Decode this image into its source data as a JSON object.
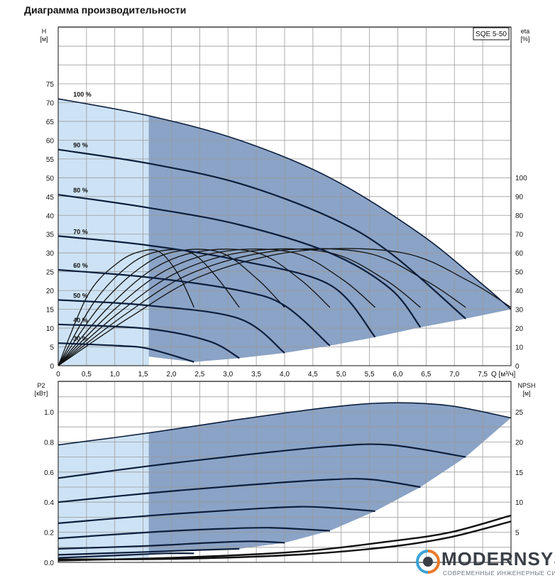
{
  "page_title": "Диаграмма производительности",
  "colors": {
    "region_dark": "#8aa3c6",
    "region_light": "#cde3f5",
    "curve": "#0c1e3c",
    "grid": "#9a9a9a"
  },
  "chart_data": [
    {
      "type": "line",
      "model_badge": "SQE 5-50",
      "y_left_label": [
        "H",
        "[м]"
      ],
      "y_right_label": [
        "eta",
        "[%]"
      ],
      "x_label": "Q [м³/ч]",
      "xlim": [
        0,
        7.5
      ],
      "x_ticks": [
        "0",
        "0,5",
        "1,0",
        "1,5",
        "2,0",
        "2,5",
        "3,0",
        "3,5",
        "4,0",
        "4,5",
        "5,0",
        "5,5",
        "6,0",
        "6,5",
        "7,0",
        "7,5"
      ],
      "ylim": [
        0,
        75
      ],
      "y_ticks": [
        "0",
        "5",
        "10",
        "15",
        "20",
        "25",
        "30",
        "35",
        "40",
        "45",
        "50",
        "55",
        "60",
        "65",
        "70",
        "75"
      ],
      "y2lim": [
        0,
        100
      ],
      "y2_ticks": [
        "0",
        "10",
        "20",
        "30",
        "40",
        "50",
        "60",
        "70",
        "80",
        "90",
        "100"
      ],
      "grid": true,
      "min_flow_light_region": [
        0,
        1.5
      ],
      "operating_region_lower_boundary": [
        [
          1.5,
          2.4
        ],
        [
          2.25,
          1.0
        ],
        [
          3.0,
          2.0
        ],
        [
          3.75,
          3.4
        ],
        [
          4.5,
          5.3
        ],
        [
          5.25,
          7.6
        ],
        [
          6.0,
          10.2
        ],
        [
          6.75,
          12.5
        ],
        [
          7.5,
          15.0
        ]
      ],
      "head_curves": [
        {
          "label": "100 %",
          "points": [
            [
              0,
              71.0
            ],
            [
              1.5,
              66.5
            ],
            [
              3.0,
              60.0
            ],
            [
              4.5,
              50.0
            ],
            [
              6.0,
              35.0
            ],
            [
              7.0,
              22.0
            ],
            [
              7.5,
              15.0
            ]
          ]
        },
        {
          "label": "90 %",
          "points": [
            [
              0,
              57.5
            ],
            [
              1.5,
              53.8
            ],
            [
              3.0,
              48.5
            ],
            [
              4.5,
              39.5
            ],
            [
              5.5,
              30.0
            ],
            [
              6.75,
              12.5
            ]
          ]
        },
        {
          "label": "80 %",
          "points": [
            [
              0,
              45.5
            ],
            [
              1.5,
              42.0
            ],
            [
              3.0,
              37.5
            ],
            [
              4.5,
              30.0
            ],
            [
              5.5,
              20.5
            ],
            [
              6.0,
              10.2
            ]
          ]
        },
        {
          "label": "70 %",
          "points": [
            [
              0,
              34.5
            ],
            [
              1.5,
              32.0
            ],
            [
              3.0,
              28.0
            ],
            [
              4.5,
              21.5
            ],
            [
              5.25,
              7.6
            ]
          ]
        },
        {
          "label": "60 %",
          "points": [
            [
              0,
              25.5
            ],
            [
              1.5,
              23.5
            ],
            [
              3.0,
              20.0
            ],
            [
              3.75,
              16.0
            ],
            [
              4.5,
              5.3
            ]
          ]
        },
        {
          "label": "50 %",
          "points": [
            [
              0,
              17.5
            ],
            [
              1.5,
              16.0
            ],
            [
              3.0,
              12.5
            ],
            [
              3.75,
              3.4
            ]
          ]
        },
        {
          "label": "40 %",
          "points": [
            [
              0,
              11.0
            ],
            [
              1.5,
              9.8
            ],
            [
              2.5,
              6.5
            ],
            [
              3.0,
              2.0
            ]
          ]
        },
        {
          "label": "30 %",
          "points": [
            [
              0,
              6.0
            ],
            [
              1.0,
              5.3
            ],
            [
              1.5,
              4.5
            ],
            [
              2.25,
              1.0
            ]
          ]
        }
      ],
      "efficiency_curves": [
        {
          "points": [
            [
              0,
              0
            ],
            [
              0.5,
              38
            ],
            [
              1.0,
              55
            ],
            [
              1.4,
              61
            ],
            [
              1.7,
              60
            ],
            [
              2.0,
              48
            ],
            [
              2.25,
              31
            ]
          ]
        },
        {
          "points": [
            [
              0,
              0
            ],
            [
              0.6,
              34
            ],
            [
              1.2,
              54
            ],
            [
              1.7,
              61
            ],
            [
              2.2,
              60
            ],
            [
              2.6,
              48
            ],
            [
              3.0,
              31
            ]
          ]
        },
        {
          "points": [
            [
              0,
              0
            ],
            [
              0.7,
              32
            ],
            [
              1.4,
              53
            ],
            [
              2.0,
              61
            ],
            [
              2.7,
              60
            ],
            [
              3.3,
              46
            ],
            [
              3.75,
              31
            ]
          ]
        },
        {
          "points": [
            [
              0,
              0
            ],
            [
              0.8,
              30
            ],
            [
              1.6,
              52
            ],
            [
              2.4,
              61
            ],
            [
              3.3,
              60
            ],
            [
              4.0,
              46
            ],
            [
              4.5,
              31
            ]
          ]
        },
        {
          "points": [
            [
              0,
              0
            ],
            [
              0.9,
              29
            ],
            [
              1.8,
              51
            ],
            [
              2.8,
              61
            ],
            [
              3.9,
              60
            ],
            [
              4.7,
              46
            ],
            [
              5.25,
              31
            ]
          ]
        },
        {
          "points": [
            [
              0,
              0
            ],
            [
              1.0,
              28
            ],
            [
              2.0,
              50
            ],
            [
              3.2,
              61
            ],
            [
              4.5,
              60
            ],
            [
              5.4,
              46
            ],
            [
              6.0,
              31
            ]
          ]
        },
        {
          "points": [
            [
              0,
              0
            ],
            [
              1.1,
              27
            ],
            [
              2.2,
              49
            ],
            [
              3.6,
              61
            ],
            [
              5.1,
              60
            ],
            [
              6.1,
              45
            ],
            [
              6.75,
              31
            ]
          ]
        },
        {
          "points": [
            [
              0,
              0
            ],
            [
              1.2,
              26
            ],
            [
              2.4,
              48
            ],
            [
              4.0,
              61
            ],
            [
              5.7,
              60
            ],
            [
              6.8,
              45
            ],
            [
              7.5,
              31
            ]
          ]
        }
      ]
    },
    {
      "type": "line",
      "y_left_label": [
        "P2",
        "[кВт]"
      ],
      "y_right_label": [
        "NPSH",
        "[м]"
      ],
      "xlim": [
        0,
        7.5
      ],
      "ylim": [
        0,
        1.2
      ],
      "y_ticks": [
        "0.0",
        "0.2",
        "0.4",
        "0.6",
        "0.8",
        "1.0"
      ],
      "y2lim": [
        0,
        30
      ],
      "y2_ticks": [
        "5",
        "10",
        "15",
        "20",
        "25"
      ],
      "grid": true,
      "operating_region_lower_boundary": [
        [
          1.5,
          0.06
        ],
        [
          2.25,
          0.08
        ],
        [
          3.0,
          0.09
        ],
        [
          3.75,
          0.13
        ],
        [
          4.5,
          0.21
        ],
        [
          5.25,
          0.34
        ],
        [
          6.0,
          0.5
        ],
        [
          6.75,
          0.7
        ],
        [
          7.5,
          0.96
        ]
      ],
      "power_curves": [
        {
          "points": [
            [
              0,
              0.78
            ],
            [
              1.5,
              0.86
            ],
            [
              3.0,
              0.95
            ],
            [
              4.5,
              1.03
            ],
            [
              5.5,
              1.06
            ],
            [
              6.5,
              1.04
            ],
            [
              7.5,
              0.96
            ]
          ]
        },
        {
          "points": [
            [
              0,
              0.56
            ],
            [
              1.5,
              0.64
            ],
            [
              3.0,
              0.71
            ],
            [
              4.5,
              0.77
            ],
            [
              5.5,
              0.78
            ],
            [
              6.75,
              0.7
            ]
          ]
        },
        {
          "points": [
            [
              0,
              0.4
            ],
            [
              1.5,
              0.46
            ],
            [
              3.0,
              0.51
            ],
            [
              4.5,
              0.55
            ],
            [
              5.2,
              0.55
            ],
            [
              6.0,
              0.5
            ]
          ]
        },
        {
          "points": [
            [
              0,
              0.26
            ],
            [
              1.5,
              0.31
            ],
            [
              3.0,
              0.35
            ],
            [
              4.0,
              0.37
            ],
            [
              4.6,
              0.36
            ],
            [
              5.25,
              0.34
            ]
          ]
        },
        {
          "points": [
            [
              0,
              0.16
            ],
            [
              1.5,
              0.2
            ],
            [
              2.5,
              0.22
            ],
            [
              3.5,
              0.23
            ],
            [
              4.5,
              0.21
            ]
          ]
        },
        {
          "points": [
            [
              0,
              0.09
            ],
            [
              1.5,
              0.11
            ],
            [
              2.5,
              0.13
            ],
            [
              3.2,
              0.14
            ],
            [
              3.75,
              0.13
            ]
          ]
        },
        {
          "points": [
            [
              0,
              0.05
            ],
            [
              1.5,
              0.07
            ],
            [
              2.2,
              0.08
            ],
            [
              3.0,
              0.09
            ]
          ]
        },
        {
          "points": [
            [
              0,
              0.03
            ],
            [
              1.2,
              0.05
            ],
            [
              1.8,
              0.06
            ],
            [
              2.25,
              0.06
            ]
          ]
        }
      ],
      "npsh_curves": [
        {
          "points": [
            [
              0,
              0.3
            ],
            [
              2.0,
              0.8
            ],
            [
              4.0,
              1.8
            ],
            [
              5.5,
              3.5
            ],
            [
              6.5,
              5.0
            ],
            [
              7.5,
              7.8
            ]
          ]
        },
        {
          "points": [
            [
              0,
              0.5
            ],
            [
              2.0,
              0.6
            ],
            [
              4.0,
              1.3
            ],
            [
              5.5,
              2.6
            ],
            [
              6.5,
              4.2
            ],
            [
              7.5,
              6.8
            ]
          ]
        }
      ]
    }
  ],
  "brand": {
    "name": "MODERNSYS",
    "tagline": "СОВРЕМЕННЫЕ ИНЖЕНЕРНЫЕ СИСТЕМЫ"
  }
}
